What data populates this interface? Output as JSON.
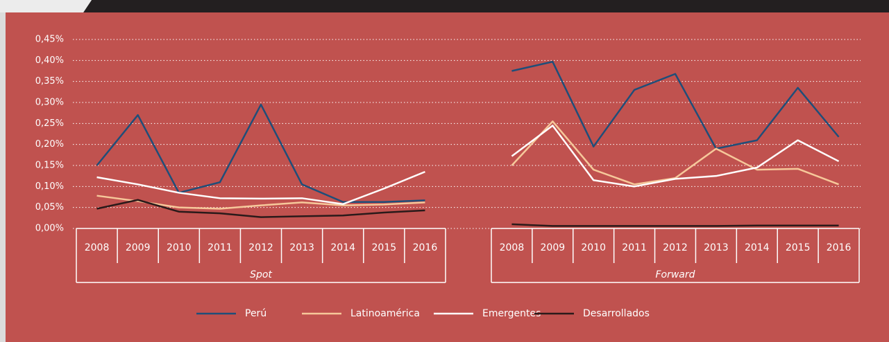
{
  "chart_data": {
    "type": "line",
    "yticks": [
      {
        "value": 0,
        "label": "0,00%"
      },
      {
        "value": 0.05,
        "label": "0,05%"
      },
      {
        "value": 0.1,
        "label": "0,10%"
      },
      {
        "value": 0.15,
        "label": "0,15%"
      },
      {
        "value": 0.2,
        "label": "0,20%"
      },
      {
        "value": 0.25,
        "label": "0,25%"
      },
      {
        "value": 0.3,
        "label": "0,30%"
      },
      {
        "value": 0.35,
        "label": "0,35%"
      },
      {
        "value": 0.4,
        "label": "0,40%"
      },
      {
        "value": 0.45,
        "label": "0,45%"
      }
    ],
    "ylim": [
      0,
      0.45
    ],
    "grid": true,
    "groups": [
      {
        "label": "Spot",
        "categories": [
          "2008",
          "2009",
          "2010",
          "2011",
          "2012",
          "2013",
          "2014",
          "2015",
          "2016"
        ]
      },
      {
        "label": "Forward",
        "categories": [
          "2008",
          "2009",
          "2010",
          "2011",
          "2012",
          "2013",
          "2014",
          "2015",
          "2016"
        ]
      }
    ],
    "series": [
      {
        "name": "Perú",
        "color": "#1f4e79",
        "values": [
          [
            0.15,
            0.27,
            0.085,
            0.11,
            0.295,
            0.105,
            0.063,
            0.063,
            0.067
          ],
          [
            0.375,
            0.397,
            0.195,
            0.33,
            0.368,
            0.19,
            0.21,
            0.335,
            0.218
          ]
        ]
      },
      {
        "name": "Latinoamérica",
        "color": "#f6c89a",
        "values": [
          [
            0.078,
            0.065,
            0.05,
            0.047,
            0.055,
            0.062,
            0.055,
            0.057,
            0.062
          ],
          [
            0.15,
            0.255,
            0.14,
            0.105,
            0.12,
            0.19,
            0.14,
            0.142,
            0.105
          ]
        ]
      },
      {
        "name": "Emergentes",
        "color": "#ffffff",
        "values": [
          [
            0.122,
            0.105,
            0.085,
            0.072,
            0.071,
            0.072,
            0.058,
            0.095,
            0.135
          ],
          [
            0.172,
            0.245,
            0.115,
            0.1,
            0.118,
            0.125,
            0.145,
            0.21,
            0.16
          ]
        ]
      },
      {
        "name": "Desarrollados",
        "color": "#2a1a1a",
        "values": [
          [
            0.047,
            0.068,
            0.04,
            0.036,
            0.027,
            0.029,
            0.031,
            0.038,
            0.043
          ],
          [
            0.01,
            0.006,
            0.006,
            0.006,
            0.006,
            0.006,
            0.007,
            0.007,
            0.007
          ]
        ]
      }
    ]
  }
}
